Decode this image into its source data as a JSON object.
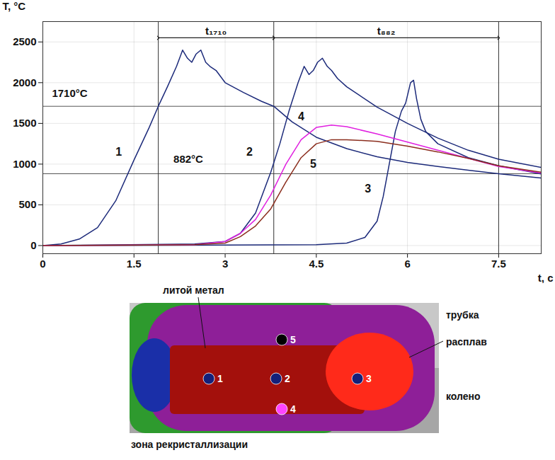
{
  "chart_data": {
    "type": "line",
    "xlabel": "t, с",
    "ylabel": "T, °C",
    "xlim": [
      0,
      8.2
    ],
    "ylim": [
      -100,
      2750
    ],
    "xticks": [
      0,
      1.5,
      3,
      4.5,
      6,
      7.5
    ],
    "yticks": [
      0,
      500,
      1000,
      1500,
      2000,
      2500
    ],
    "grid": true,
    "reference_lines": [
      {
        "y": 1710,
        "label": "1710°C",
        "label_x": 0.15,
        "label_y": 1870
      },
      {
        "y": 882,
        "label": "882°C",
        "label_x": 2.15,
        "label_y": 1060
      }
    ],
    "intervals": [
      {
        "label": "t₁₇₁₀",
        "from": 1.9,
        "to": 3.8
      },
      {
        "label": "t₈₈₂",
        "from": 3.8,
        "to": 7.5
      }
    ],
    "series": [
      {
        "name": "1",
        "color": "#1c2a7a",
        "label_x": 1.25,
        "label_y": 1150,
        "x": [
          0,
          0.3,
          0.6,
          0.9,
          1.2,
          1.5,
          1.75,
          1.9,
          2.05,
          2.2,
          2.3,
          2.38,
          2.45,
          2.52,
          2.6,
          2.68,
          2.75,
          2.85,
          3.0,
          3.3,
          3.6,
          3.8,
          4.1,
          4.5,
          5.0,
          5.5,
          6.0,
          6.5,
          7.0,
          7.5,
          8.2
        ],
        "values": [
          0,
          20,
          80,
          220,
          550,
          1050,
          1450,
          1710,
          1950,
          2200,
          2400,
          2300,
          2250,
          2350,
          2400,
          2250,
          2200,
          2150,
          2000,
          1880,
          1770,
          1710,
          1520,
          1330,
          1190,
          1090,
          1020,
          970,
          925,
          882,
          830
        ]
      },
      {
        "name": "2",
        "color": "#1c2a7a",
        "label_x": 3.4,
        "label_y": 1150,
        "x": [
          0,
          2.5,
          3.0,
          3.25,
          3.5,
          3.75,
          3.9,
          4.05,
          4.2,
          4.3,
          4.38,
          4.45,
          4.52,
          4.6,
          4.68,
          4.75,
          4.85,
          5.0,
          5.5,
          6.0,
          6.5,
          7.0,
          7.5,
          8.2
        ],
        "values": [
          0,
          20,
          50,
          150,
          400,
          900,
          1250,
          1650,
          2000,
          2200,
          2100,
          2150,
          2250,
          2300,
          2200,
          2150,
          2050,
          1950,
          1700,
          1500,
          1320,
          1170,
          1060,
          960
        ]
      },
      {
        "name": "3",
        "color": "#1c2a7a",
        "label_x": 5.35,
        "label_y": 700,
        "x": [
          0,
          4.5,
          5.0,
          5.3,
          5.5,
          5.6,
          5.7,
          5.8,
          5.9,
          5.97,
          6.05,
          6.1,
          6.15,
          6.22,
          6.3,
          6.5,
          7.0,
          7.5,
          8.2
        ],
        "values": [
          0,
          10,
          30,
          100,
          300,
          600,
          1000,
          1400,
          1650,
          1750,
          2000,
          2030,
          1800,
          1550,
          1400,
          1250,
          1080,
          980,
          880
        ]
      },
      {
        "name": "4",
        "color": "#e020e0",
        "label_x": 4.25,
        "label_y": 1580,
        "x": [
          0,
          2.5,
          3.0,
          3.25,
          3.5,
          3.75,
          4.0,
          4.25,
          4.5,
          4.75,
          5.0,
          5.5,
          6.0,
          6.5,
          7.0,
          7.5,
          8.2
        ],
        "values": [
          0,
          10,
          50,
          150,
          320,
          620,
          1000,
          1300,
          1450,
          1480,
          1460,
          1370,
          1270,
          1170,
          1070,
          970,
          890
        ]
      },
      {
        "name": "5",
        "color": "#8b2e1e",
        "label_x": 4.45,
        "label_y": 1000,
        "x": [
          0,
          2.5,
          3.0,
          3.25,
          3.5,
          3.75,
          4.0,
          4.25,
          4.5,
          4.75,
          5.0,
          5.5,
          6.0,
          6.5,
          7.0,
          7.5,
          8.2
        ],
        "values": [
          0,
          10,
          30,
          110,
          240,
          450,
          780,
          1080,
          1250,
          1300,
          1300,
          1280,
          1220,
          1150,
          1070,
          980,
          900
        ]
      }
    ]
  },
  "diagram": {
    "regions": [
      {
        "label": "трубка",
        "color": "#c8c8c8"
      },
      {
        "label": "колено",
        "color": "#a6a6a6"
      },
      {
        "label": "зона рекристаллизации",
        "color": "#2e9a2e"
      },
      {
        "color": "#8e1f98"
      },
      {
        "label": "литой метал",
        "color": "#a3100c"
      },
      {
        "label": "расплав",
        "color": "#ff2a1a"
      },
      {
        "color": "#1a2fa8"
      }
    ],
    "points": [
      {
        "label": "1",
        "color": "#14207a"
      },
      {
        "label": "2",
        "color": "#14207a"
      },
      {
        "label": "3",
        "color": "#14207a"
      },
      {
        "label": "4",
        "color": "#ff44ff"
      },
      {
        "label": "5",
        "color": "#000000"
      }
    ]
  }
}
